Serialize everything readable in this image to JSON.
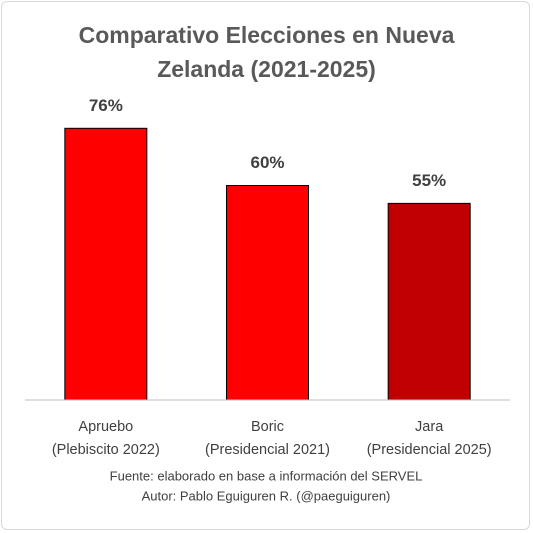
{
  "chart_data": {
    "type": "bar",
    "title": "Comparativo Elecciones en Nueva Zelanda (2021-2025)",
    "categories": [
      [
        "Apruebo",
        "(Plebiscito 2022)"
      ],
      [
        "Boric",
        "(Presidencial 2021)"
      ],
      [
        "Jara",
        "(Presidencial 2025)"
      ]
    ],
    "values": [
      76,
      60,
      55
    ],
    "value_labels": [
      "76%",
      "60%",
      "55%"
    ],
    "colors": [
      "#ff0000",
      "#ff0000",
      "#c00000"
    ],
    "ylim": [
      0,
      80
    ],
    "notes": [
      "Fuente: elaborado en base a información del SERVEL",
      "Autor: Pablo Eguiguren R. (@paeguiguren)"
    ]
  }
}
